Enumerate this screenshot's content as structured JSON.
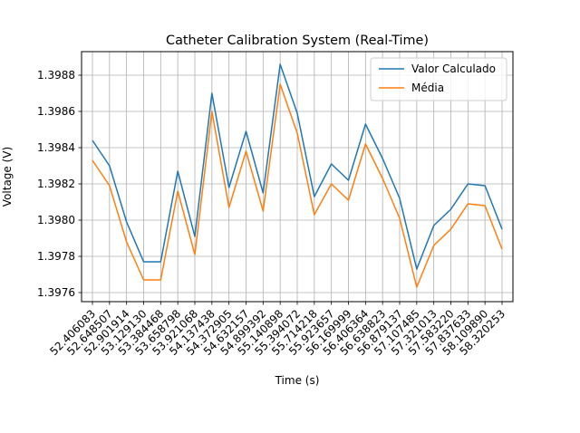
{
  "chart_data": {
    "type": "line",
    "title": "Catheter Calibration System (Real-Time)",
    "xlabel": "Time (s)",
    "ylabel": "Voltage (V)",
    "categories": [
      "52.406083",
      "52.648507",
      "52.901914",
      "53.129130",
      "53.384468",
      "53.658798",
      "53.921068",
      "54.137438",
      "54.372905",
      "54.632157",
      "54.899392",
      "55.140898",
      "55.394072",
      "55.714218",
      "55.923657",
      "56.169999",
      "56.406364",
      "56.638823",
      "56.879137",
      "57.107485",
      "57.321013",
      "57.583220",
      "57.837633",
      "58.109890",
      "58.320253"
    ],
    "ylim": [
      1.39755,
      1.39893
    ],
    "yticks": [
      "1.3976",
      "1.3978",
      "1.3980",
      "1.3982",
      "1.3984",
      "1.3986",
      "1.3988"
    ],
    "ytick_values": [
      1.3976,
      1.3978,
      1.398,
      1.3982,
      1.3984,
      1.3986,
      1.3988
    ],
    "grid": true,
    "legend_position": "upper-right",
    "series": [
      {
        "name": "Valor Calculado",
        "color": "#1f77b4",
        "values": [
          1.39844,
          1.3983,
          1.39799,
          1.39777,
          1.39777,
          1.39827,
          1.39791,
          1.3987,
          1.39818,
          1.39849,
          1.39815,
          1.39886,
          1.39859,
          1.39813,
          1.39831,
          1.39822,
          1.39853,
          1.39834,
          1.39812,
          1.39773,
          1.39797,
          1.39806,
          1.3982,
          1.39819,
          1.39795
        ]
      },
      {
        "name": "Média",
        "color": "#ff7f0e",
        "values": [
          1.39833,
          1.39819,
          1.39788,
          1.39767,
          1.39767,
          1.39816,
          1.39781,
          1.3986,
          1.39807,
          1.39838,
          1.39805,
          1.39875,
          1.39848,
          1.39803,
          1.3982,
          1.39811,
          1.39842,
          1.39823,
          1.39801,
          1.39763,
          1.39786,
          1.39795,
          1.39809,
          1.39808,
          1.39784
        ]
      }
    ]
  }
}
